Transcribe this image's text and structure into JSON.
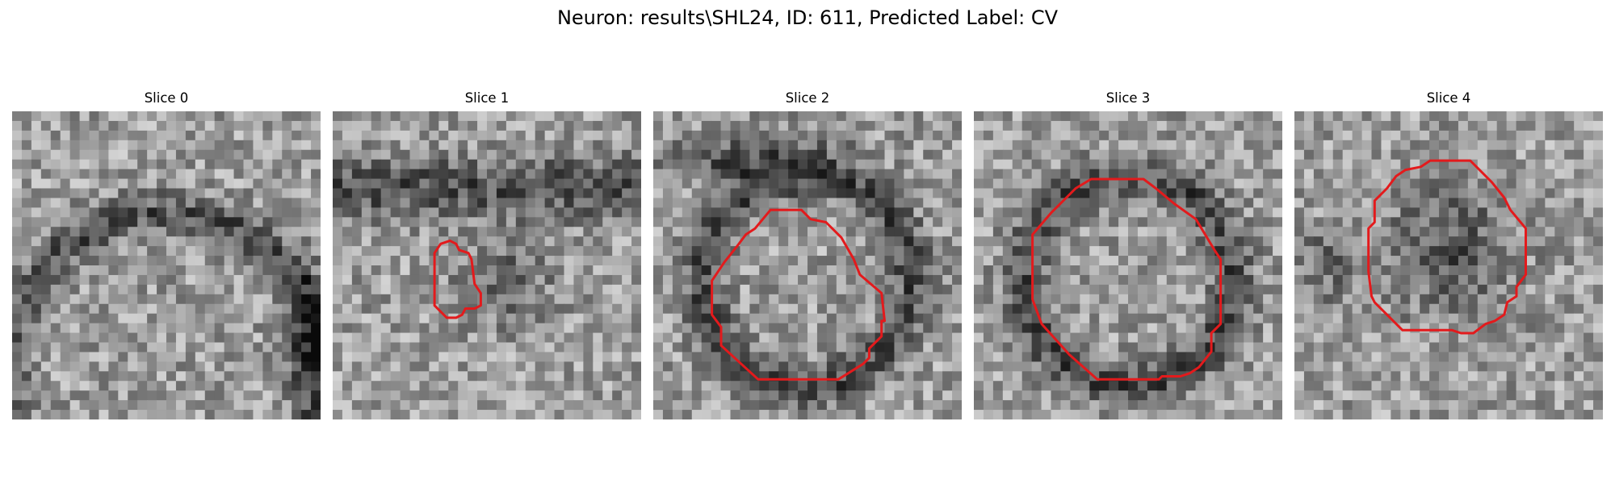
{
  "figure": {
    "title": "Neuron: results\\SHL24, ID: 611, Predicted Label: CV"
  },
  "panels": [
    {
      "title": "Slice 0",
      "seed": 11,
      "pattern": "arc_right",
      "contour": []
    },
    {
      "title": "Slice 1",
      "seed": 23,
      "pattern": "blob",
      "contour": [
        [
          0.33,
          0.46
        ],
        [
          0.35,
          0.43
        ],
        [
          0.38,
          0.42
        ],
        [
          0.4,
          0.43
        ],
        [
          0.41,
          0.45
        ],
        [
          0.44,
          0.46
        ],
        [
          0.45,
          0.48
        ],
        [
          0.46,
          0.56
        ],
        [
          0.48,
          0.59
        ],
        [
          0.48,
          0.63
        ],
        [
          0.46,
          0.64
        ],
        [
          0.43,
          0.64
        ],
        [
          0.42,
          0.66
        ],
        [
          0.4,
          0.67
        ],
        [
          0.37,
          0.67
        ],
        [
          0.33,
          0.63
        ]
      ]
    },
    {
      "title": "Slice 2",
      "seed": 37,
      "pattern": "ring",
      "contour": [
        [
          0.23,
          0.49
        ],
        [
          0.27,
          0.44
        ],
        [
          0.3,
          0.4
        ],
        [
          0.33,
          0.38
        ],
        [
          0.38,
          0.32
        ],
        [
          0.48,
          0.32
        ],
        [
          0.51,
          0.35
        ],
        [
          0.56,
          0.36
        ],
        [
          0.61,
          0.41
        ],
        [
          0.65,
          0.48
        ],
        [
          0.67,
          0.53
        ],
        [
          0.74,
          0.59
        ],
        [
          0.75,
          0.68
        ],
        [
          0.74,
          0.68
        ],
        [
          0.74,
          0.73
        ],
        [
          0.7,
          0.77
        ],
        [
          0.7,
          0.8
        ],
        [
          0.68,
          0.82
        ],
        [
          0.6,
          0.87
        ],
        [
          0.34,
          0.87
        ],
        [
          0.22,
          0.76
        ],
        [
          0.22,
          0.7
        ],
        [
          0.19,
          0.66
        ],
        [
          0.19,
          0.55
        ]
      ]
    },
    {
      "title": "Slice 3",
      "seed": 53,
      "pattern": "ring",
      "contour": [
        [
          0.19,
          0.4
        ],
        [
          0.25,
          0.33
        ],
        [
          0.33,
          0.25
        ],
        [
          0.38,
          0.22
        ],
        [
          0.55,
          0.22
        ],
        [
          0.59,
          0.25
        ],
        [
          0.65,
          0.3
        ],
        [
          0.72,
          0.35
        ],
        [
          0.75,
          0.4
        ],
        [
          0.78,
          0.45
        ],
        [
          0.8,
          0.48
        ],
        [
          0.8,
          0.69
        ],
        [
          0.77,
          0.72
        ],
        [
          0.77,
          0.78
        ],
        [
          0.73,
          0.83
        ],
        [
          0.7,
          0.85
        ],
        [
          0.67,
          0.86
        ],
        [
          0.61,
          0.86
        ],
        [
          0.6,
          0.87
        ],
        [
          0.4,
          0.87
        ],
        [
          0.31,
          0.79
        ],
        [
          0.22,
          0.69
        ],
        [
          0.19,
          0.61
        ]
      ]
    },
    {
      "title": "Slice 4",
      "seed": 71,
      "pattern": "dark_core",
      "contour": [
        [
          0.26,
          0.29
        ],
        [
          0.3,
          0.25
        ],
        [
          0.33,
          0.21
        ],
        [
          0.36,
          0.19
        ],
        [
          0.41,
          0.18
        ],
        [
          0.44,
          0.16
        ],
        [
          0.57,
          0.16
        ],
        [
          0.6,
          0.19
        ],
        [
          0.64,
          0.23
        ],
        [
          0.68,
          0.28
        ],
        [
          0.7,
          0.32
        ],
        [
          0.75,
          0.38
        ],
        [
          0.75,
          0.53
        ],
        [
          0.72,
          0.57
        ],
        [
          0.72,
          0.6
        ],
        [
          0.69,
          0.62
        ],
        [
          0.68,
          0.66
        ],
        [
          0.65,
          0.68
        ],
        [
          0.62,
          0.69
        ],
        [
          0.58,
          0.72
        ],
        [
          0.54,
          0.72
        ],
        [
          0.51,
          0.71
        ],
        [
          0.35,
          0.71
        ],
        [
          0.3,
          0.66
        ],
        [
          0.26,
          0.62
        ],
        [
          0.25,
          0.6
        ],
        [
          0.24,
          0.52
        ],
        [
          0.24,
          0.38
        ],
        [
          0.26,
          0.36
        ]
      ]
    }
  ],
  "colors": {
    "contour": "#e31a1c",
    "background": "#ffffff"
  }
}
